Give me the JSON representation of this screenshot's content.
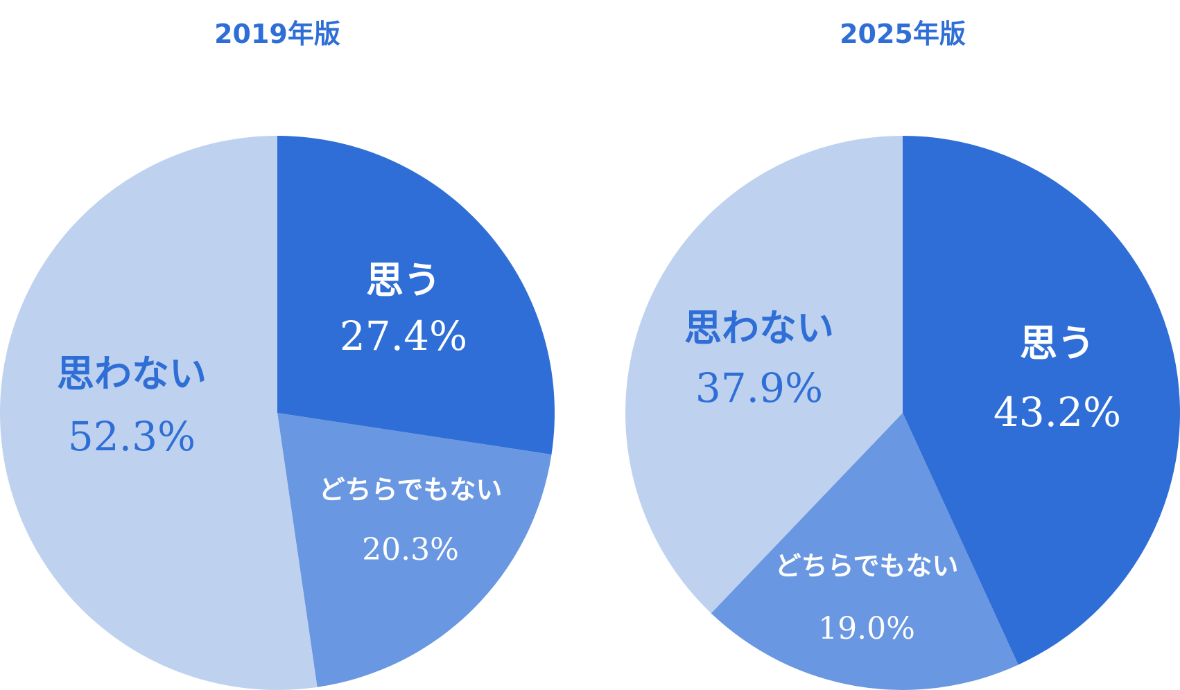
{
  "colors": {
    "title": "#2E6ED6",
    "slice_omou": "#2E6ED6",
    "slice_dochira": "#6A97E1",
    "slice_omowanai": "#BED2EF",
    "label_on_dark": "#FFFFFF",
    "label_on_light": "#2E6ED6"
  },
  "chart_data": [
    {
      "type": "pie",
      "title": "2019年版",
      "slices": [
        {
          "label": "思う",
          "value": 27.4,
          "value_text": "27.4%",
          "color": "#2E6ED6",
          "label_color": "#FFFFFF"
        },
        {
          "label": "どちらでもない",
          "value": 20.3,
          "value_text": "20.3%",
          "color": "#6A97E1",
          "label_color": "#FFFFFF"
        },
        {
          "label": "思わない",
          "value": 52.3,
          "value_text": "52.3%",
          "color": "#BED2EF",
          "label_color": "#2E6ED6"
        }
      ]
    },
    {
      "type": "pie",
      "title": "2025年版",
      "slices": [
        {
          "label": "思う",
          "value": 43.2,
          "value_text": "43.2%",
          "color": "#2E6ED6",
          "label_color": "#FFFFFF"
        },
        {
          "label": "どちらでもない",
          "value": 19.0,
          "value_text": "19.0%",
          "color": "#6A97E1",
          "label_color": "#FFFFFF"
        },
        {
          "label": "思わない",
          "value": 37.9,
          "value_text": "37.9%",
          "color": "#BED2EF",
          "label_color": "#2E6ED6"
        }
      ]
    }
  ]
}
